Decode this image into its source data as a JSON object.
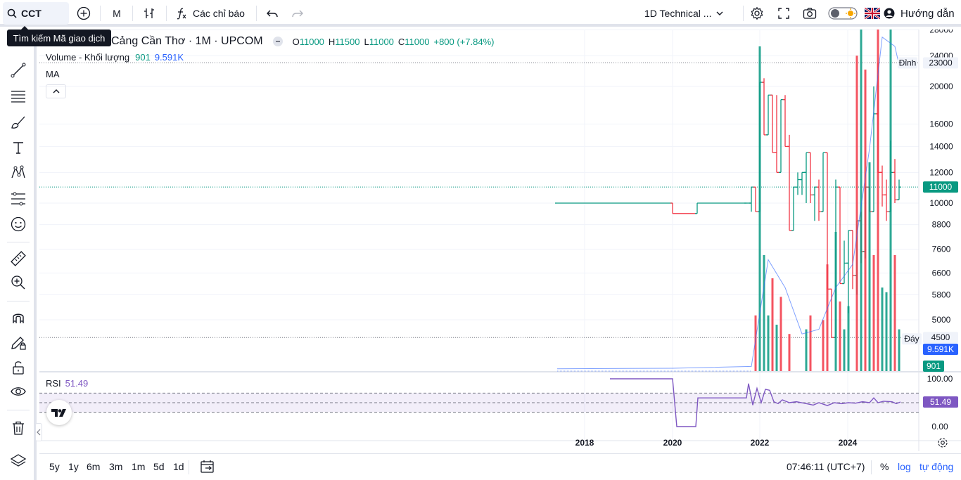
{
  "toolbar": {
    "symbol": "CCT",
    "interval": "M",
    "indicators_label": "Các chỉ báo",
    "layout_name": "1D Technical ...",
    "help_label": "Hướng dẫn"
  },
  "tooltip": {
    "text": "Tìm kiếm Mã giao dịch"
  },
  "legend": {
    "title": "Cảng Cần Thơ · 1M · UPCOM",
    "o_label": "O",
    "o_value": "11000",
    "h_label": "H",
    "h_value": "11500",
    "l_label": "L",
    "l_value": "11000",
    "c_label": "C",
    "c_value": "11000",
    "change": "+800 (+7.84%)",
    "volume_label": "Volume - Khối lượng",
    "volume_value": "901",
    "volume_ma": "9.591K",
    "ma_label": "MA",
    "rsi_label": "RSI",
    "rsi_value": "51.49"
  },
  "price_axis": {
    "ticks": [
      "28000",
      "24000",
      "20000",
      "16000",
      "14000",
      "12000",
      "10000",
      "8800",
      "7600",
      "6600",
      "5800",
      "5000"
    ],
    "top_label": "Đỉnh",
    "top_value": "23000",
    "bottom_label": "Đáy",
    "bottom_value": "4500",
    "last_price": "11000",
    "vol_ma_value": "9.591K",
    "vol_value": "901",
    "rsi_ticks": [
      "100.00",
      "0.00"
    ],
    "rsi_value": "51.49"
  },
  "time_axis": {
    "ticks": [
      "2018",
      "2020",
      "2022",
      "2024"
    ]
  },
  "bottom": {
    "ranges": [
      "5y",
      "1y",
      "6m",
      "3m",
      "1m",
      "5d",
      "1d"
    ],
    "clock": "07:46:11 (UTC+7)",
    "pct": "%",
    "log": "log",
    "auto": "tự động"
  },
  "colors": {
    "up": "#089981",
    "down": "#f23645",
    "rsi": "#7e57c2",
    "accent": "#2962ff"
  }
}
